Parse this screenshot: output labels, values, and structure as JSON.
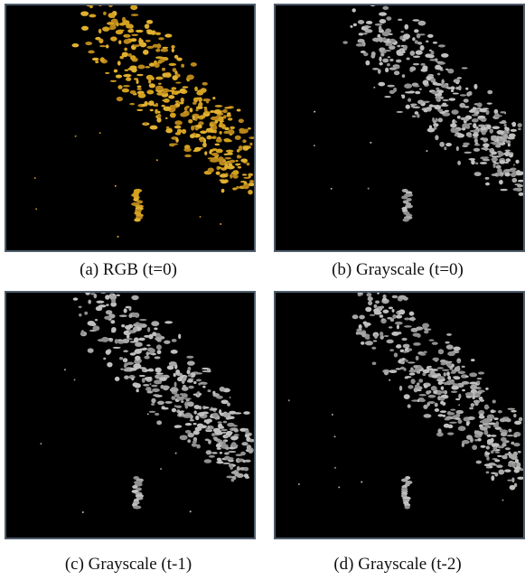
{
  "panels": [
    {
      "caption": "(a) RGB (t=0)"
    },
    {
      "caption": "(b) Grayscale (t=0)"
    },
    {
      "caption": "(c) Grayscale (t-1)"
    },
    {
      "caption": "(d) Grayscale (t-2)"
    }
  ]
}
